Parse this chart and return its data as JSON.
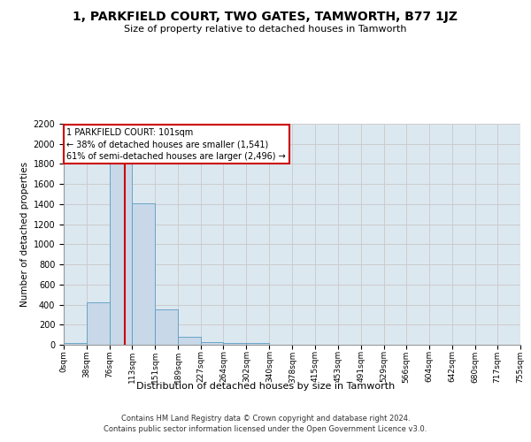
{
  "title": "1, PARKFIELD COURT, TWO GATES, TAMWORTH, B77 1JZ",
  "subtitle": "Size of property relative to detached houses in Tamworth",
  "xlabel": "Distribution of detached houses by size in Tamworth",
  "ylabel": "Number of detached properties",
  "footer_line1": "Contains HM Land Registry data © Crown copyright and database right 2024.",
  "footer_line2": "Contains public sector information licensed under the Open Government Licence v3.0.",
  "bin_edges": [
    0,
    38,
    76,
    113,
    151,
    189,
    227,
    264,
    302,
    340,
    378,
    415,
    453,
    491,
    529,
    566,
    604,
    642,
    680,
    717,
    755
  ],
  "bar_heights": [
    15,
    425,
    1810,
    1405,
    350,
    80,
    30,
    18,
    18,
    0,
    0,
    0,
    0,
    0,
    0,
    0,
    0,
    0,
    0,
    0
  ],
  "bar_color": "#c8d8e8",
  "bar_edge_color": "#5a9cc0",
  "red_line_x": 101,
  "annotation_text": "1 PARKFIELD COURT: 101sqm\n← 38% of detached houses are smaller (1,541)\n61% of semi-detached houses are larger (2,496) →",
  "annotation_box_color": "#ffffff",
  "annotation_box_edge_color": "#cc0000",
  "ylim": [
    0,
    2200
  ],
  "yticks": [
    0,
    200,
    400,
    600,
    800,
    1000,
    1200,
    1400,
    1600,
    1800,
    2000,
    2200
  ],
  "background_color": "#ffffff",
  "grid_color": "#cccccc",
  "axes_bg_color": "#dce8f0"
}
